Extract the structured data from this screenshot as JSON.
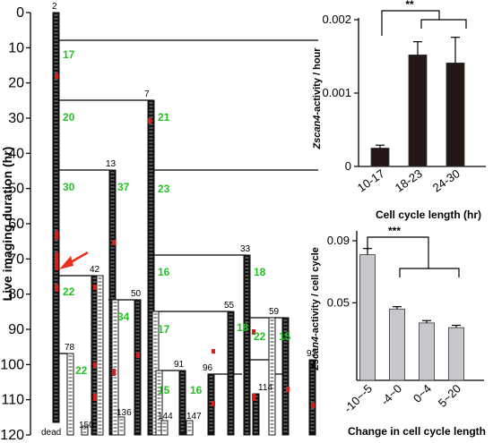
{
  "chart_data": [
    {
      "type": "lineage",
      "ylabel": "Live imaging duration (hr)",
      "ylim": [
        0,
        120
      ],
      "yticks": [
        "0",
        "10",
        "20",
        "30",
        "40",
        "50",
        "60",
        "70",
        "80",
        "90",
        "100",
        "110",
        "120"
      ],
      "cell_ids": [
        "2",
        "7",
        "13",
        "33",
        "42",
        "50",
        "55",
        "59",
        "78",
        "91",
        "93",
        "96",
        "114",
        "136",
        "144",
        "147",
        "150"
      ],
      "cycle_lengths": [
        "17",
        "20",
        "30",
        "22",
        "21",
        "23",
        "16",
        "17",
        "15",
        "37",
        "34",
        "16",
        "18",
        "18",
        "22",
        "15",
        "22"
      ],
      "dead_label": "dead",
      "arrow_color": "#e8321e",
      "activity_color": "#d4201a"
    },
    {
      "type": "bar",
      "categories": [
        "10-17",
        "18-23",
        "24-30"
      ],
      "values": [
        0.00025,
        0.00152,
        0.00141
      ],
      "errors": [
        4e-05,
        0.00018,
        0.00035
      ],
      "xlabel": "Cell cycle length (hr)",
      "ylabel_prefix": "Zscan4",
      "ylabel_suffix": "-activity / hour",
      "yticks": [
        "0",
        "0.001",
        "0.002"
      ],
      "ylim": [
        0,
        0.002
      ],
      "significance": "**",
      "bar_color": "#231815"
    },
    {
      "type": "bar",
      "categories": [
        "-10~-5",
        "-4~0",
        "0~4",
        "5~20"
      ],
      "values": [
        0.081,
        0.046,
        0.037,
        0.034
      ],
      "errors": [
        0.004,
        0.0015,
        0.0015,
        0.0015
      ],
      "xlabel": "Change in cell cycle length",
      "ylabel_prefix": "Zscan4",
      "ylabel_suffix": "-activity / cell cycle",
      "yticks": [
        "0.05",
        "0.09"
      ],
      "ylim": [
        0,
        0.09
      ],
      "significance": "***",
      "bar_color": "#c8c8cc"
    }
  ]
}
